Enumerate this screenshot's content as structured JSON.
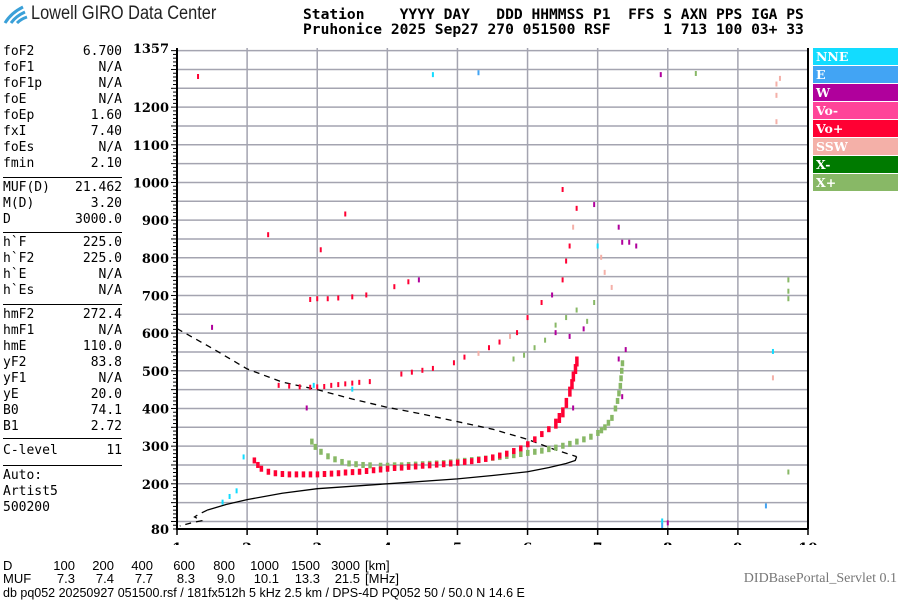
{
  "header": {
    "logo_text": "Lowell GIRO Data Center",
    "line1": "Station    YYYY DAY   DDD HHMMSS P1  FFS S AXN PPS IGA PS",
    "line2": "Pruhonice 2025 Sep27 270 051500 RSF      1 713 100 03+ 33"
  },
  "params": [
    {
      "label": "foF2",
      "value": "6.700"
    },
    {
      "label": "foF1",
      "value": "N/A"
    },
    {
      "label": "foF1p",
      "value": "N/A"
    },
    {
      "label": "foE",
      "value": "N/A"
    },
    {
      "label": "foEp",
      "value": "1.60"
    },
    {
      "label": "fxI",
      "value": "7.40"
    },
    {
      "label": "foEs",
      "value": "N/A"
    },
    {
      "label": "fmin",
      "value": "2.10"
    },
    {
      "label": "MUF(D)",
      "value": "21.462"
    },
    {
      "label": "M(D)",
      "value": "3.20"
    },
    {
      "label": "D",
      "value": "3000.0"
    },
    {
      "label": "h`F",
      "value": "225.0"
    },
    {
      "label": "h`F2",
      "value": "225.0"
    },
    {
      "label": "h`E",
      "value": "N/A"
    },
    {
      "label": "h`Es",
      "value": "N/A"
    },
    {
      "label": "hmF2",
      "value": "272.4"
    },
    {
      "label": "hmF1",
      "value": "N/A"
    },
    {
      "label": "hmE",
      "value": "110.0"
    },
    {
      "label": "yF2",
      "value": "83.8"
    },
    {
      "label": "yF1",
      "value": "N/A"
    },
    {
      "label": "yE",
      "value": "20.0"
    },
    {
      "label": "B0",
      "value": "74.1"
    },
    {
      "label": "B1",
      "value": "2.72"
    },
    {
      "label": "C-level",
      "value": "11"
    }
  ],
  "autoscaling": [
    "Auto:",
    "Artist5",
    "500200"
  ],
  "legend": [
    {
      "label": "NNE",
      "color": "#12dcff"
    },
    {
      "label": "E",
      "color": "#42a4f4"
    },
    {
      "label": "W",
      "color": "#b0009c"
    },
    {
      "label": "Vo-",
      "color": "#ff4499"
    },
    {
      "label": "Vo+",
      "color": "#ff0033"
    },
    {
      "label": "SSW",
      "color": "#f4b0a8"
    },
    {
      "label": "X-",
      "color": "#007a00"
    },
    {
      "label": "X+",
      "color": "#88b866"
    }
  ],
  "muf_table": {
    "d_label": "D",
    "muf_label": "MUF",
    "distances": [
      "100",
      "200",
      "400",
      "600",
      "800",
      "1000",
      "1500",
      "3000"
    ],
    "mufs": [
      "7.3",
      "7.4",
      "7.7",
      "8.3",
      "9.0",
      "10.1",
      "13.3",
      "21.5"
    ],
    "d_unit": "[km]",
    "muf_unit": "[MHz]"
  },
  "footer": {
    "info": "db pq052 20250927 051500.rsf / 181fx512h 5 kHz 2.5 km / DPS-4D PQ052 50 / 50.0 N 14.6 E",
    "servlet": "DIDBasePortal_Servlet 0.1"
  },
  "chart_data": {
    "type": "scatter",
    "xlim": [
      1,
      10
    ],
    "ylim": [
      80,
      1357
    ],
    "x_ticks": [
      "1",
      "2",
      "3",
      "4",
      "5",
      "6",
      "7",
      "8",
      "9",
      "10"
    ],
    "y_ticks": [
      "80",
      "200",
      "300",
      "400",
      "500",
      "600",
      "700",
      "800",
      "900",
      "1000",
      "1100",
      "1200",
      "1357"
    ],
    "grid": true,
    "legend_position": "right",
    "o_trace": {
      "color_key": "Vo+",
      "points": [
        [
          2.1,
          262
        ],
        [
          2.15,
          250
        ],
        [
          2.2,
          240
        ],
        [
          2.3,
          232
        ],
        [
          2.4,
          228
        ],
        [
          2.5,
          226
        ],
        [
          2.6,
          225
        ],
        [
          2.7,
          225
        ],
        [
          2.8,
          225
        ],
        [
          2.9,
          225
        ],
        [
          3.0,
          225
        ],
        [
          3.1,
          226
        ],
        [
          3.2,
          227
        ],
        [
          3.3,
          228
        ],
        [
          3.4,
          230
        ],
        [
          3.5,
          231
        ],
        [
          3.6,
          232
        ],
        [
          3.7,
          234
        ],
        [
          3.8,
          236
        ],
        [
          3.9,
          238
        ],
        [
          4.0,
          240
        ],
        [
          4.1,
          242
        ],
        [
          4.2,
          243
        ],
        [
          4.3,
          245
        ],
        [
          4.4,
          246
        ],
        [
          4.5,
          248
        ],
        [
          4.6,
          249
        ],
        [
          4.7,
          251
        ],
        [
          4.8,
          252
        ],
        [
          4.9,
          254
        ],
        [
          5.0,
          256
        ],
        [
          5.1,
          258
        ],
        [
          5.2,
          260
        ],
        [
          5.3,
          263
        ],
        [
          5.4,
          266
        ],
        [
          5.5,
          270
        ],
        [
          5.6,
          275
        ],
        [
          5.7,
          280
        ],
        [
          5.8,
          287
        ],
        [
          5.9,
          294
        ],
        [
          6.0,
          305
        ],
        [
          6.1,
          318
        ],
        [
          6.2,
          332
        ],
        [
          6.3,
          345
        ],
        [
          6.4,
          365
        ],
        [
          6.45,
          380
        ],
        [
          6.5,
          395
        ],
        [
          6.55,
          420
        ],
        [
          6.6,
          450
        ],
        [
          6.63,
          470
        ],
        [
          6.65,
          490
        ],
        [
          6.68,
          510
        ],
        [
          6.7,
          530
        ]
      ]
    },
    "x_trace": {
      "color_key": "X+",
      "points": [
        [
          2.92,
          312
        ],
        [
          2.97,
          298
        ],
        [
          3.05,
          285
        ],
        [
          3.15,
          273
        ],
        [
          3.25,
          265
        ],
        [
          3.35,
          258
        ],
        [
          3.45,
          254
        ],
        [
          3.55,
          252
        ],
        [
          3.65,
          250
        ],
        [
          3.75,
          249
        ],
        [
          3.9,
          248
        ],
        [
          4.0,
          248
        ],
        [
          4.1,
          249
        ],
        [
          4.2,
          249
        ],
        [
          4.3,
          250
        ],
        [
          4.4,
          251
        ],
        [
          4.5,
          252
        ],
        [
          4.6,
          253
        ],
        [
          4.7,
          254
        ],
        [
          4.8,
          255
        ],
        [
          4.9,
          257
        ],
        [
          5.0,
          259
        ],
        [
          5.1,
          261
        ],
        [
          5.2,
          263
        ],
        [
          5.3,
          265
        ],
        [
          5.4,
          267
        ],
        [
          5.5,
          269
        ],
        [
          5.6,
          271
        ],
        [
          5.7,
          274
        ],
        [
          5.8,
          276
        ],
        [
          5.9,
          279
        ],
        [
          6.0,
          282
        ],
        [
          6.1,
          285
        ],
        [
          6.2,
          288
        ],
        [
          6.3,
          292
        ],
        [
          6.4,
          296
        ],
        [
          6.5,
          301
        ],
        [
          6.6,
          306
        ],
        [
          6.7,
          312
        ],
        [
          6.8,
          318
        ],
        [
          6.9,
          325
        ],
        [
          7.0,
          335
        ],
        [
          7.05,
          342
        ],
        [
          7.1,
          350
        ],
        [
          7.15,
          362
        ],
        [
          7.2,
          375
        ],
        [
          7.25,
          400
        ],
        [
          7.28,
          420
        ],
        [
          7.3,
          440
        ],
        [
          7.32,
          460
        ],
        [
          7.33,
          480
        ],
        [
          7.34,
          500
        ],
        [
          7.35,
          520
        ]
      ]
    },
    "profile_upper_dashed": [
      [
        1.0,
        612
      ],
      [
        1.5,
        560
      ],
      [
        2.0,
        505
      ],
      [
        2.5,
        470
      ],
      [
        3.0,
        450
      ],
      [
        3.5,
        425
      ],
      [
        4.0,
        403
      ],
      [
        4.5,
        385
      ],
      [
        5.0,
        365
      ],
      [
        5.5,
        345
      ],
      [
        6.0,
        318
      ],
      [
        6.4,
        290
      ],
      [
        6.6,
        278
      ],
      [
        6.7,
        272
      ]
    ],
    "profile_solid": [
      [
        6.7,
        272
      ],
      [
        6.68,
        262
      ],
      [
        6.55,
        254
      ],
      [
        6.3,
        243
      ],
      [
        6.0,
        232
      ],
      [
        5.5,
        222
      ],
      [
        5.0,
        213
      ],
      [
        4.0,
        200
      ],
      [
        3.0,
        187
      ],
      [
        2.5,
        175
      ],
      [
        2.0,
        158
      ],
      [
        1.7,
        145
      ],
      [
        1.43,
        130
      ]
    ],
    "profile_lower_dashed": [
      [
        1.43,
        130
      ],
      [
        1.3,
        118
      ],
      [
        1.25,
        112
      ],
      [
        1.35,
        102
      ],
      [
        1.2,
        96
      ],
      [
        1.04,
        88
      ]
    ],
    "echoes": [
      [
        2.45,
        460,
        "Vo+"
      ],
      [
        2.6,
        458,
        "Vo+"
      ],
      [
        2.75,
        456,
        "Vo+"
      ],
      [
        2.9,
        455,
        "Vo+"
      ],
      [
        3.0,
        456,
        "Vo+"
      ],
      [
        3.1,
        457,
        "Vo+"
      ],
      [
        3.2,
        460,
        "Vo+"
      ],
      [
        3.3,
        462,
        "Vo+"
      ],
      [
        3.4,
        464,
        "Vo+"
      ],
      [
        3.5,
        466,
        "Vo+"
      ],
      [
        3.6,
        468,
        "Vo+"
      ],
      [
        3.75,
        470,
        "Vo+"
      ],
      [
        4.2,
        490,
        "Vo+"
      ],
      [
        4.35,
        495,
        "Vo+"
      ],
      [
        4.5,
        500,
        "Vo+"
      ],
      [
        4.65,
        505,
        "Vo+"
      ],
      [
        4.95,
        520,
        "Vo+"
      ],
      [
        5.1,
        535,
        "Vo+"
      ],
      [
        5.3,
        545,
        "SSW"
      ],
      [
        5.45,
        560,
        "Vo+"
      ],
      [
        5.6,
        575,
        "Vo+"
      ],
      [
        5.75,
        590,
        "SSW"
      ],
      [
        5.85,
        600,
        "Vo+"
      ],
      [
        5.8,
        530,
        "X+"
      ],
      [
        5.95,
        540,
        "X+"
      ],
      [
        6.1,
        560,
        "X+"
      ],
      [
        6.25,
        580,
        "X+"
      ],
      [
        6.4,
        620,
        "X+"
      ],
      [
        6.55,
        640,
        "X+"
      ],
      [
        6.7,
        660,
        "X+"
      ],
      [
        6.95,
        680,
        "X+"
      ],
      [
        6.85,
        630,
        "X+"
      ],
      [
        6.0,
        640,
        "Vo+"
      ],
      [
        6.2,
        680,
        "Vo+"
      ],
      [
        6.35,
        700,
        "W"
      ],
      [
        6.5,
        740,
        "Vo+"
      ],
      [
        6.55,
        790,
        "Vo+"
      ],
      [
        6.6,
        830,
        "Vo+"
      ],
      [
        6.65,
        880,
        "SSW"
      ],
      [
        6.7,
        930,
        "Vo+"
      ],
      [
        6.5,
        980,
        "Vo+"
      ],
      [
        6.4,
        600,
        "W"
      ],
      [
        6.6,
        590,
        "W"
      ],
      [
        6.8,
        610,
        "W"
      ],
      [
        6.95,
        940,
        "W"
      ],
      [
        7.3,
        880,
        "W"
      ],
      [
        7.35,
        840,
        "W"
      ],
      [
        7.45,
        840,
        "W"
      ],
      [
        7.55,
        830,
        "W"
      ],
      [
        7.1,
        760,
        "SSW"
      ],
      [
        7.2,
        720,
        "SSW"
      ],
      [
        7.05,
        800,
        "SSW"
      ],
      [
        7.0,
        830,
        "NNE"
      ],
      [
        2.9,
        688,
        "Vo+"
      ],
      [
        3.0,
        690,
        "Vo+"
      ],
      [
        3.15,
        690,
        "Vo+"
      ],
      [
        3.3,
        692,
        "Vo+"
      ],
      [
        3.5,
        695,
        "Vo+"
      ],
      [
        3.7,
        700,
        "Vo+"
      ],
      [
        4.1,
        722,
        "Vo+"
      ],
      [
        4.3,
        735,
        "Vo+"
      ],
      [
        3.05,
        820,
        "Vo+"
      ],
      [
        3.4,
        915,
        "Vo+"
      ],
      [
        2.3,
        860,
        "Vo+"
      ],
      [
        4.45,
        740,
        "W"
      ],
      [
        7.3,
        530,
        "W"
      ],
      [
        7.4,
        555,
        "W"
      ],
      [
        7.35,
        430,
        "W"
      ],
      [
        6.65,
        400,
        "W"
      ],
      [
        2.85,
        400,
        "W"
      ],
      [
        1.5,
        614,
        "W"
      ],
      [
        1.3,
        1280,
        "Vo+"
      ],
      [
        4.65,
        1285,
        "NNE"
      ],
      [
        5.3,
        1290,
        "E"
      ],
      [
        7.9,
        1285,
        "W"
      ],
      [
        8.4,
        1288,
        "X+"
      ],
      [
        9.55,
        1260,
        "SSW"
      ],
      [
        9.55,
        1230,
        "SSW"
      ],
      [
        9.6,
        1275,
        "SSW"
      ],
      [
        9.55,
        1160,
        "SSW"
      ],
      [
        9.72,
        740,
        "X+"
      ],
      [
        9.72,
        710,
        "X+"
      ],
      [
        9.72,
        690,
        "X+"
      ],
      [
        9.5,
        550,
        "NNE"
      ],
      [
        9.5,
        480,
        "SSW"
      ],
      [
        9.72,
        230,
        "X+"
      ],
      [
        7.92,
        100,
        "NNE"
      ],
      [
        7.92,
        88,
        "E"
      ],
      [
        8.0,
        95,
        "W"
      ],
      [
        9.4,
        140,
        "E"
      ],
      [
        1.65,
        150,
        "NNE"
      ],
      [
        1.75,
        165,
        "NNE"
      ],
      [
        1.85,
        180,
        "NNE"
      ],
      [
        1.95,
        270,
        "NNE"
      ],
      [
        2.95,
        460,
        "NNE"
      ],
      [
        3.5,
        450,
        "NNE"
      ]
    ]
  }
}
